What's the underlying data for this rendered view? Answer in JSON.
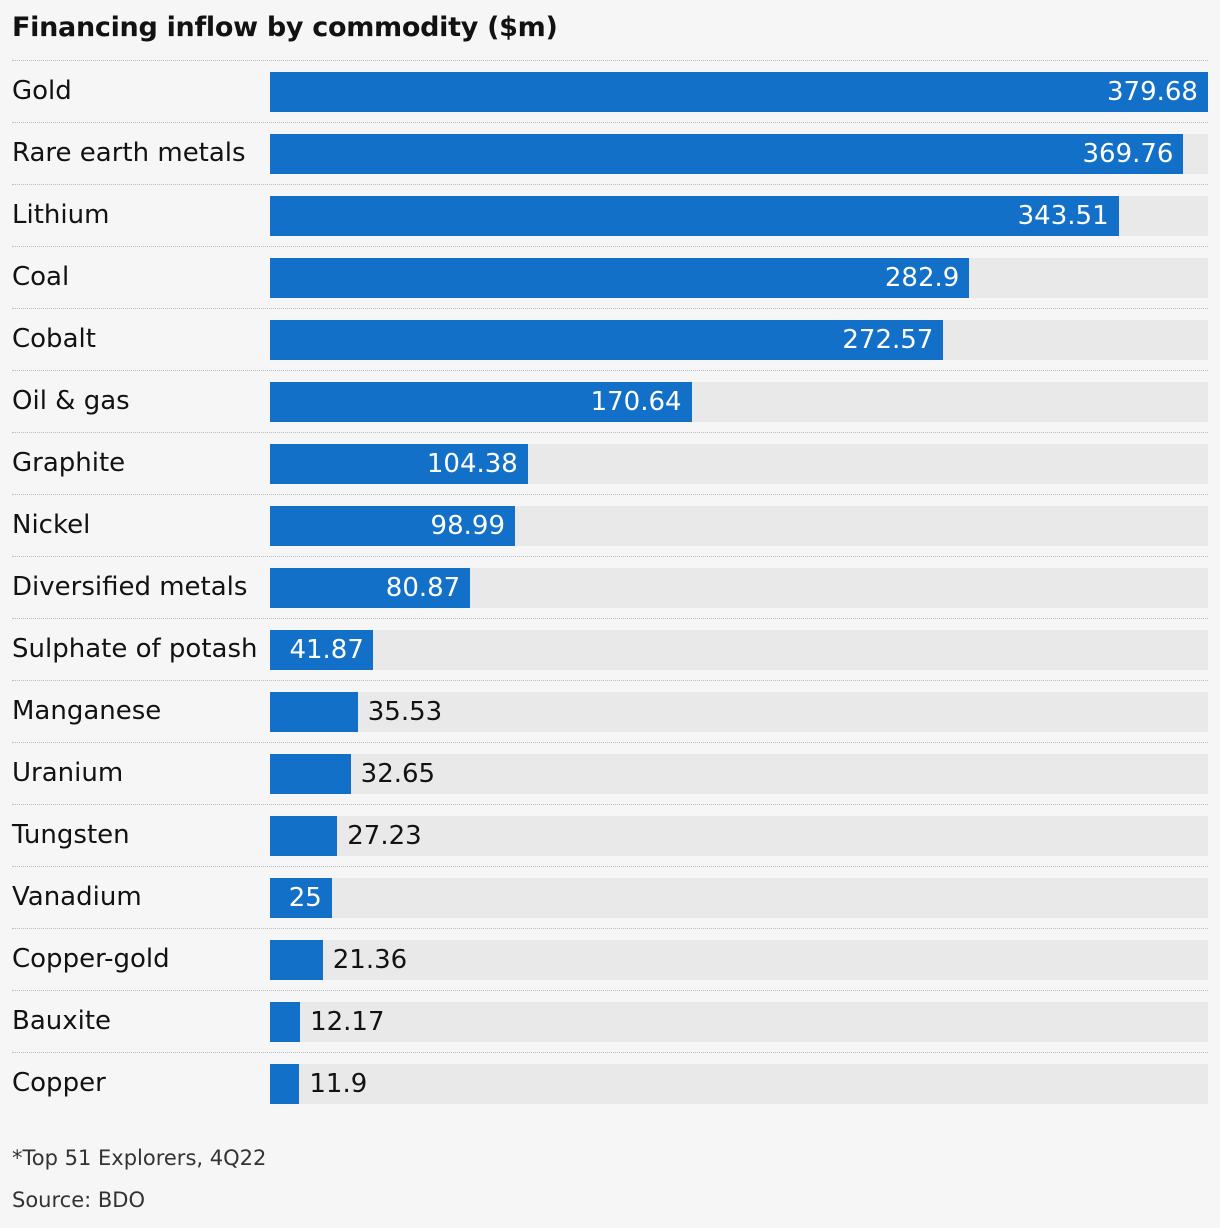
{
  "chart_data": {
    "type": "bar",
    "orientation": "horizontal",
    "title": "Financing inflow by commodity ($m)",
    "categories": [
      "Gold",
      "Rare earth metals",
      "Lithium",
      "Coal",
      "Cobalt",
      "Oil & gas",
      "Graphite",
      "Nickel",
      "Diversified metals",
      "Sulphate of potash",
      "Manganese",
      "Uranium",
      "Tungsten",
      "Vanadium",
      "Copper-gold",
      "Bauxite",
      "Copper"
    ],
    "values": [
      379.68,
      369.76,
      343.51,
      282.9,
      272.57,
      170.64,
      104.38,
      98.99,
      80.87,
      41.87,
      35.53,
      32.65,
      27.23,
      25,
      21.36,
      12.17,
      11.9
    ],
    "value_labels": [
      "379.68",
      "369.76",
      "343.51",
      "282.9",
      "272.57",
      "170.64",
      "104.38",
      "98.99",
      "80.87",
      "41.87",
      "35.53",
      "32.65",
      "27.23",
      "25",
      "21.36",
      "12.17",
      "11.9"
    ],
    "xlim": [
      0,
      379.68
    ],
    "grid": false,
    "legend": "none",
    "colors": {
      "bar": "#1270c8",
      "track": "#e9e9e9",
      "background": "#f6f6f6"
    }
  },
  "footnote": "*Top 51 Explorers, 4Q22",
  "source": "Source: BDO"
}
